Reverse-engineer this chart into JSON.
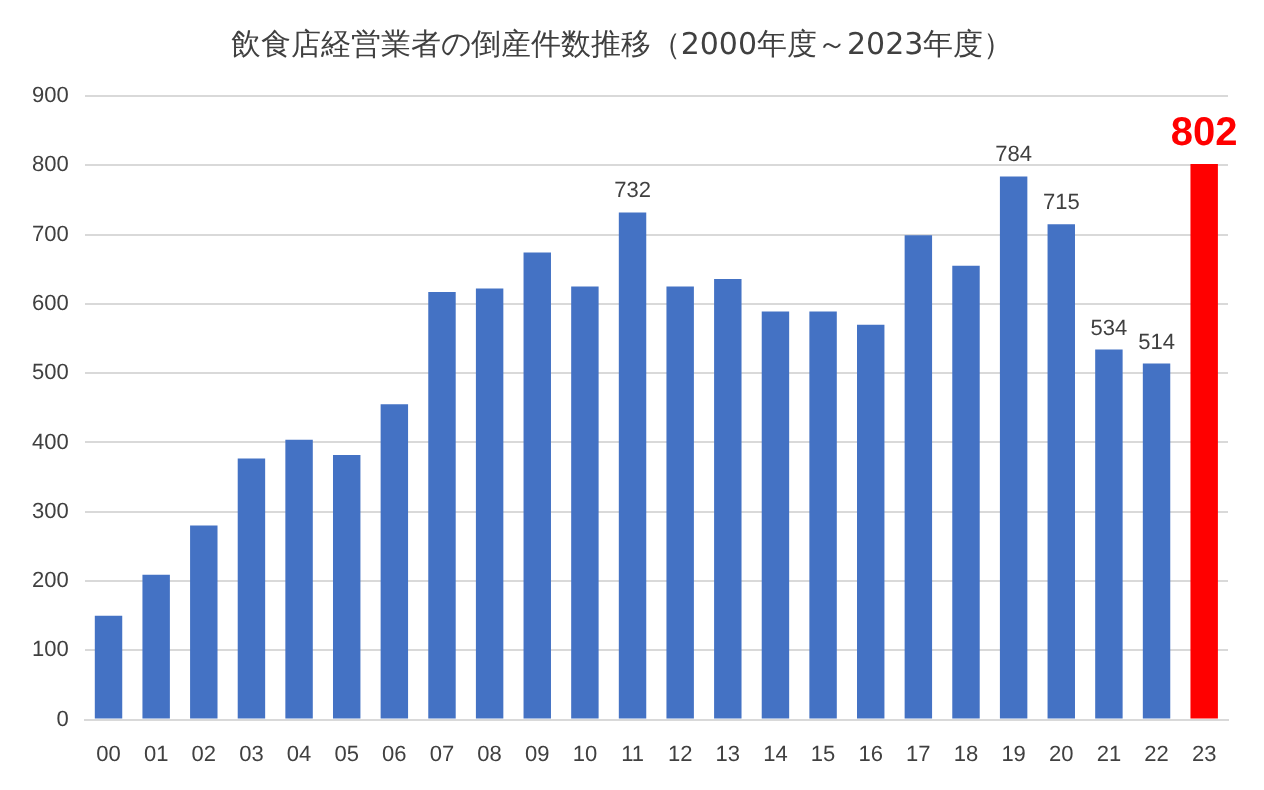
{
  "chart_data": {
    "type": "bar",
    "title": "飲食店経営業者の倒産件数推移（2000年度～2023年度）",
    "categories": [
      "00",
      "01",
      "02",
      "03",
      "04",
      "05",
      "06",
      "07",
      "08",
      "09",
      "10",
      "11",
      "12",
      "13",
      "14",
      "15",
      "16",
      "17",
      "18",
      "19",
      "20",
      "21",
      "22",
      "23"
    ],
    "values": [
      150,
      209,
      280,
      377,
      404,
      382,
      455,
      617,
      622,
      674,
      625,
      732,
      625,
      636,
      589,
      589,
      570,
      699,
      655,
      784,
      715,
      534,
      514,
      802
    ],
    "colors": [
      "#4472c4",
      "#4472c4",
      "#4472c4",
      "#4472c4",
      "#4472c4",
      "#4472c4",
      "#4472c4",
      "#4472c4",
      "#4472c4",
      "#4472c4",
      "#4472c4",
      "#4472c4",
      "#4472c4",
      "#4472c4",
      "#4472c4",
      "#4472c4",
      "#4472c4",
      "#4472c4",
      "#4472c4",
      "#4472c4",
      "#4472c4",
      "#4472c4",
      "#4472c4",
      "#ff0000"
    ],
    "value_labels": [
      null,
      null,
      null,
      null,
      null,
      null,
      null,
      null,
      null,
      null,
      null,
      "732",
      null,
      null,
      null,
      null,
      null,
      null,
      null,
      "784",
      "715",
      "534",
      "514",
      "802"
    ],
    "ylim": [
      0,
      900
    ],
    "yticks": [
      0,
      100,
      200,
      300,
      400,
      500,
      600,
      700,
      800,
      900
    ],
    "grid": "y",
    "legend": false
  }
}
